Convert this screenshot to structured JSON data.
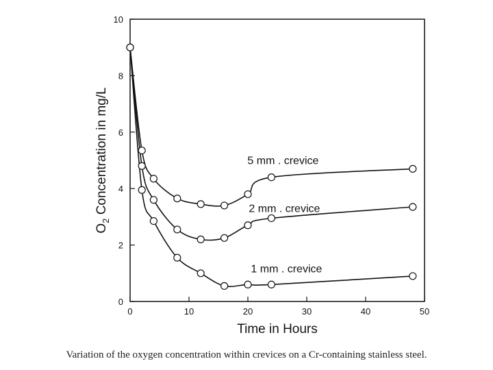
{
  "caption": "Variation of the oxygen concentration within crevices on a Cr-containing stainless steel.",
  "chart_data": {
    "type": "line",
    "title": "",
    "xlabel": "Time in Hours",
    "ylabel_parts": [
      "O",
      "2",
      " Concentration in mg/L"
    ],
    "xlim": [
      0,
      50
    ],
    "ylim": [
      0,
      10
    ],
    "xticks": [
      0,
      10,
      20,
      30,
      40,
      50
    ],
    "yticks": [
      0,
      2,
      4,
      6,
      8,
      10
    ],
    "grid": false,
    "series": [
      {
        "name": "5 mm . crevice",
        "x": [
          0,
          2,
          4,
          8,
          12,
          16,
          20,
          24,
          48
        ],
        "y": [
          9.0,
          5.35,
          4.35,
          3.65,
          3.45,
          3.4,
          3.8,
          4.4,
          4.7
        ]
      },
      {
        "name": "2 mm . crevice",
        "x": [
          0,
          2,
          4,
          8,
          12,
          16,
          20,
          24,
          48
        ],
        "y": [
          9.0,
          4.8,
          3.6,
          2.55,
          2.2,
          2.25,
          2.7,
          2.95,
          3.35
        ]
      },
      {
        "name": "1 mm . crevice",
        "x": [
          0,
          2,
          4,
          8,
          12,
          16,
          20,
          24,
          48
        ],
        "y": [
          9.0,
          3.95,
          2.85,
          1.55,
          1.0,
          0.55,
          0.6,
          0.6,
          0.9
        ]
      }
    ]
  }
}
